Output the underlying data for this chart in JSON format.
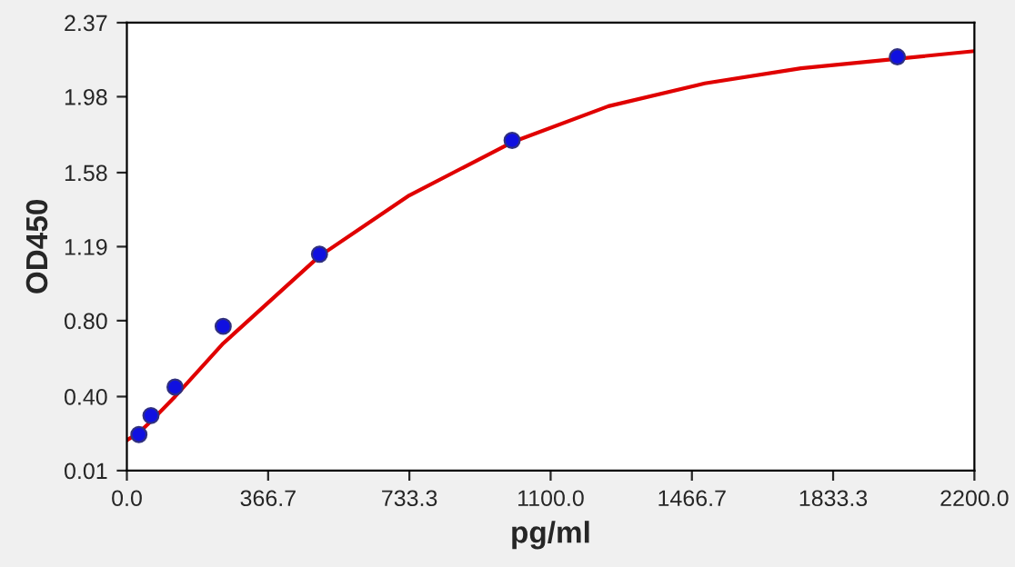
{
  "chart_data": {
    "type": "scatter",
    "xlabel": "pg/ml",
    "ylabel": "OD450",
    "xlim": [
      0,
      2200
    ],
    "ylim": [
      0.01,
      2.37
    ],
    "xticks": [
      {
        "value": 0,
        "label": "0.0"
      },
      366.7,
      733.3,
      {
        "value": 1100,
        "label": "1100.0"
      },
      1466.7,
      1833.3,
      {
        "value": 2200,
        "label": "2200.0"
      }
    ],
    "yticks": [
      0.01,
      {
        "value": 0.4,
        "label": "0.40"
      },
      {
        "value": 0.8,
        "label": "0.80"
      },
      1.19,
      1.58,
      1.98,
      2.37
    ],
    "grid": false,
    "series": [
      {
        "type": "line",
        "color": "#e00000",
        "marker": "none",
        "line_style": "solid",
        "x": [
          0,
          31.25,
          62.5,
          125,
          250,
          500,
          733,
          1000,
          1250,
          1500,
          1750,
          2200
        ],
        "values": [
          0.17,
          0.21,
          0.27,
          0.4,
          0.68,
          1.14,
          1.46,
          1.74,
          1.93,
          2.05,
          2.13,
          2.22
        ]
      },
      {
        "color": "#1010e0",
        "marker": "circle",
        "x": [
          31.25,
          62.5,
          125,
          250,
          500,
          1000,
          2000
        ],
        "values": [
          0.2,
          0.3,
          0.45,
          0.77,
          1.15,
          1.75,
          2.19
        ]
      }
    ]
  }
}
